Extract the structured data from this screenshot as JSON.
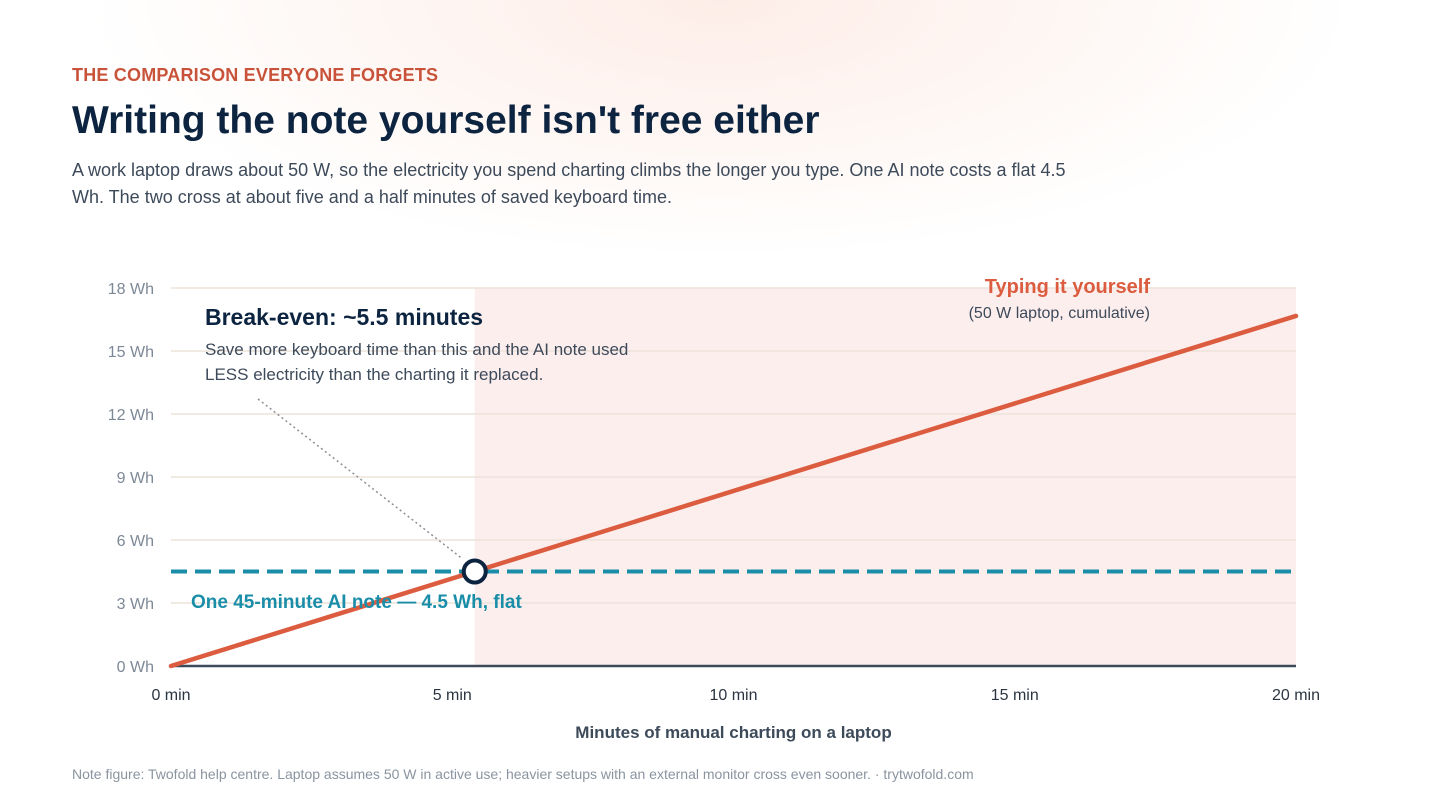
{
  "header": {
    "eyebrow": "THE COMPARISON EVERYONE FORGETS",
    "title": "Writing the note yourself isn't free either",
    "subtitle": "A work laptop draws about 50 W, so the electricity you spend charting climbs the longer you type. One AI note costs a flat 4.5 Wh. The two cross at about five and a half minutes of saved keyboard time."
  },
  "footnote": "Note figure: Twofold help centre. Laptop assumes 50 W in active use; heavier setups with an external monitor cross even sooner. · trytwofold.com",
  "colors": {
    "typing_line": "#dc5c3f",
    "ai_note_line": "#1a8ea8",
    "shaded_region": "#fdeeee",
    "title": "#0c2440",
    "eyebrow": "#c9533a",
    "grid": "#ebe3da",
    "axis": "#3d4a5a"
  },
  "chart_data": {
    "type": "line",
    "xlabel": "Minutes of manual charting on a laptop",
    "ylabel": "",
    "xlim": [
      0,
      20
    ],
    "ylim": [
      0,
      18
    ],
    "x_ticks": [
      0,
      5,
      10,
      15,
      20
    ],
    "x_tick_labels": [
      "0 min",
      "5 min",
      "10 min",
      "15 min",
      "20 min"
    ],
    "y_ticks": [
      0,
      3,
      6,
      9,
      12,
      15,
      18
    ],
    "y_tick_labels": [
      "0 Wh",
      "3 Wh",
      "6 Wh",
      "9 Wh",
      "12 Wh",
      "15 Wh",
      "18 Wh"
    ],
    "grid": true,
    "series": [
      {
        "name": "Typing it yourself",
        "sublabel": "(50 W laptop, cumulative)",
        "style": "solid",
        "x": [
          0,
          20
        ],
        "y": [
          0,
          16.67
        ]
      },
      {
        "name": "One 45-minute AI note — 4.5 Wh, flat",
        "style": "dashed",
        "x": [
          0,
          20
        ],
        "y": [
          4.5,
          4.5
        ]
      }
    ],
    "shaded_region": {
      "x_start": 5.4,
      "x_end": 20
    },
    "break_even": {
      "x": 5.4,
      "y": 4.5,
      "title": "Break-even: ~5.5 minutes",
      "text_lines": [
        "Save more keyboard time than this and the AI note used",
        "LESS electricity than the charting it replaced."
      ]
    }
  }
}
